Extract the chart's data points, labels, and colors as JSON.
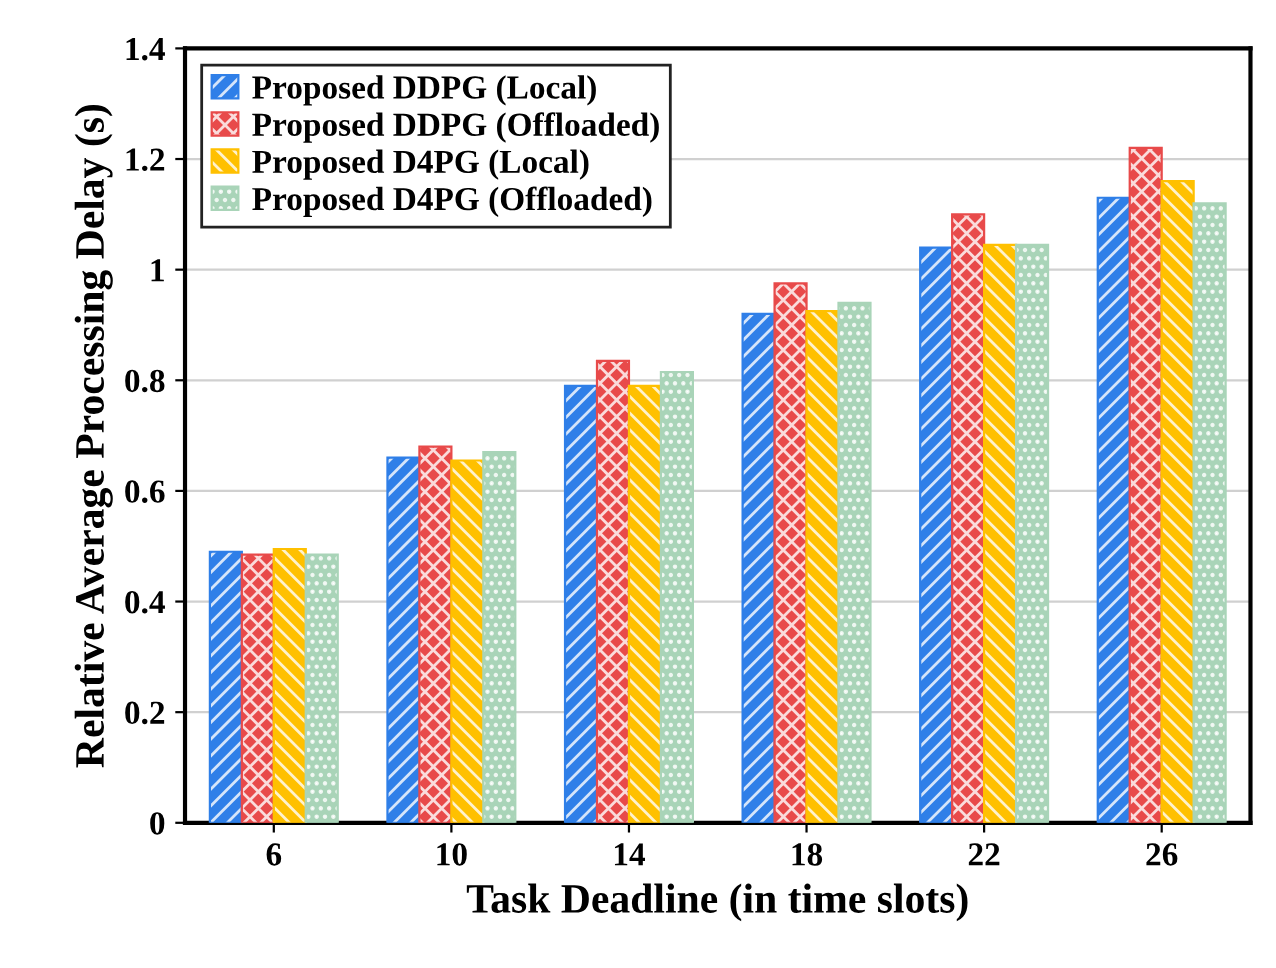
{
  "chart_data": {
    "type": "bar",
    "xlabel": "Task Deadline (in time slots)",
    "ylabel": "Relative Average Processing Delay (s)",
    "categories": [
      "6",
      "10",
      "14",
      "18",
      "22",
      "26"
    ],
    "series": [
      {
        "name": "Proposed DDPG (Local)",
        "color": "#2f7fe8",
        "values": [
          0.49,
          0.66,
          0.79,
          0.92,
          1.04,
          1.13
        ]
      },
      {
        "name": "Proposed DDPG (Offloaded)",
        "color": "#e84a4a",
        "values": [
          0.485,
          0.68,
          0.835,
          0.975,
          1.1,
          1.22
        ]
      },
      {
        "name": "Proposed D4PG (Local)",
        "color": "#ffc000",
        "values": [
          0.495,
          0.655,
          0.79,
          0.925,
          1.045,
          1.16
        ]
      },
      {
        "name": "Proposed D4PG (Offloaded)",
        "color": "#a9d4b8",
        "values": [
          0.485,
          0.67,
          0.815,
          0.94,
          1.045,
          1.12
        ]
      }
    ],
    "ylim": [
      0,
      1.4
    ],
    "yticks": [
      0,
      0.2,
      0.4,
      0.6,
      0.8,
      1,
      1.2,
      1.4
    ],
    "grid": "y",
    "legend": "top left"
  }
}
